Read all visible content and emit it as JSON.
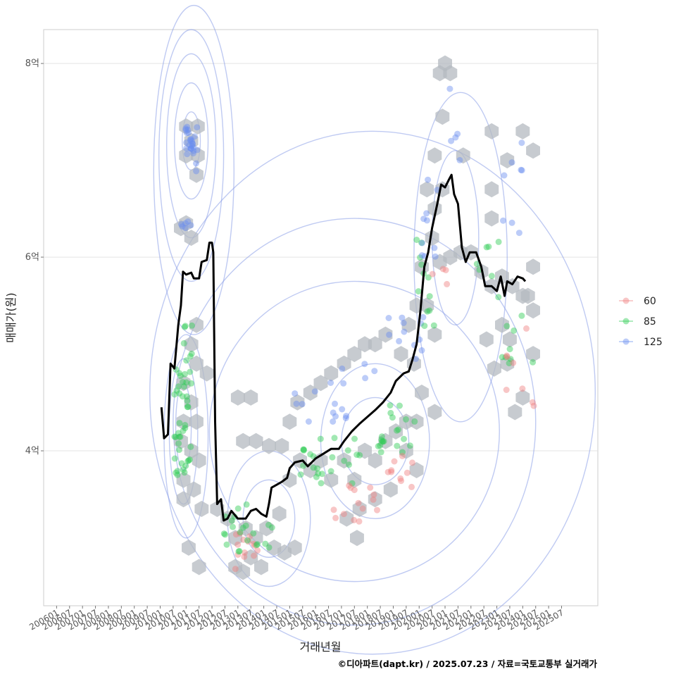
{
  "chart_data": {
    "type": "scatter",
    "title": "",
    "xlabel": "거래년월",
    "ylabel": "매매가(원)",
    "caption": "©디아파트(dapt.kr) / 2025.07.23 / 자료=국토교통부 실거래가",
    "x_ticks": [
      "200601",
      "200607",
      "200701",
      "200707",
      "200801",
      "200807",
      "200901",
      "200907",
      "201001",
      "201007",
      "201101",
      "201107",
      "201201",
      "201207",
      "201301",
      "201307",
      "201401",
      "201407",
      "201501",
      "201507",
      "201601",
      "201607",
      "201701",
      "201707",
      "201801",
      "201807",
      "201901",
      "201907",
      "202001",
      "202007",
      "202101",
      "202107",
      "202201",
      "202207",
      "202301",
      "202307",
      "202401",
      "202407",
      "202501",
      "202507"
    ],
    "y_ticks": [
      {
        "value": 4,
        "label": "4억"
      },
      {
        "value": 6,
        "label": "6억"
      },
      {
        "value": 8,
        "label": "8억"
      }
    ],
    "xlim": [
      2005.5,
      2026.9
    ],
    "ylim": [
      2.4,
      8.35
    ],
    "grid": "horizontal",
    "legend_position": "right",
    "legend": [
      {
        "name": "60",
        "color": "#f08080"
      },
      {
        "name": "85",
        "color": "#2ecc55"
      },
      {
        "name": "125",
        "color": "#6a8ff0"
      }
    ],
    "trend_line": {
      "color": "#000000",
      "points": [
        [
          2010.05,
          4.45
        ],
        [
          2010.15,
          4.13
        ],
        [
          2010.3,
          4.17
        ],
        [
          2010.4,
          4.9
        ],
        [
          2010.55,
          4.85
        ],
        [
          2010.7,
          5.3
        ],
        [
          2010.8,
          5.5
        ],
        [
          2010.88,
          5.85
        ],
        [
          2011.0,
          5.82
        ],
        [
          2011.2,
          5.84
        ],
        [
          2011.3,
          5.78
        ],
        [
          2011.5,
          5.78
        ],
        [
          2011.6,
          5.95
        ],
        [
          2011.8,
          5.97
        ],
        [
          2011.9,
          6.15
        ],
        [
          2012.0,
          6.15
        ],
        [
          2012.05,
          6.05
        ],
        [
          2012.12,
          4.3
        ],
        [
          2012.2,
          3.45
        ],
        [
          2012.35,
          3.5
        ],
        [
          2012.45,
          3.28
        ],
        [
          2012.6,
          3.3
        ],
        [
          2012.75,
          3.38
        ],
        [
          2013.0,
          3.3
        ],
        [
          2013.3,
          3.3
        ],
        [
          2013.5,
          3.38
        ],
        [
          2013.7,
          3.4
        ],
        [
          2013.9,
          3.35
        ],
        [
          2014.1,
          3.32
        ],
        [
          2014.2,
          3.45
        ],
        [
          2014.3,
          3.62
        ],
        [
          2014.5,
          3.65
        ],
        [
          2014.7,
          3.68
        ],
        [
          2014.9,
          3.72
        ],
        [
          2015.0,
          3.82
        ],
        [
          2015.2,
          3.88
        ],
        [
          2015.5,
          3.9
        ],
        [
          2015.7,
          3.84
        ],
        [
          2016.0,
          3.92
        ],
        [
          2016.3,
          3.97
        ],
        [
          2016.6,
          4.02
        ],
        [
          2016.9,
          4.02
        ],
        [
          2017.1,
          4.1
        ],
        [
          2017.4,
          4.2
        ],
        [
          2017.7,
          4.28
        ],
        [
          2018.0,
          4.35
        ],
        [
          2018.3,
          4.42
        ],
        [
          2018.6,
          4.5
        ],
        [
          2018.9,
          4.6
        ],
        [
          2019.1,
          4.72
        ],
        [
          2019.4,
          4.8
        ],
        [
          2019.6,
          4.82
        ],
        [
          2019.75,
          4.95
        ],
        [
          2019.9,
          5.1
        ],
        [
          2020.05,
          5.45
        ],
        [
          2020.2,
          5.9
        ],
        [
          2020.35,
          6.05
        ],
        [
          2020.5,
          6.3
        ],
        [
          2020.7,
          6.55
        ],
        [
          2020.85,
          6.75
        ],
        [
          2021.0,
          6.72
        ],
        [
          2021.15,
          6.8
        ],
        [
          2021.25,
          6.85
        ],
        [
          2021.35,
          6.65
        ],
        [
          2021.5,
          6.55
        ],
        [
          2021.65,
          6.1
        ],
        [
          2021.8,
          5.95
        ],
        [
          2021.95,
          6.05
        ],
        [
          2022.2,
          6.05
        ],
        [
          2022.4,
          5.9
        ],
        [
          2022.55,
          5.7
        ],
        [
          2022.8,
          5.7
        ],
        [
          2023.0,
          5.65
        ],
        [
          2023.15,
          5.8
        ],
        [
          2023.3,
          5.6
        ],
        [
          2023.4,
          5.75
        ],
        [
          2023.6,
          5.72
        ],
        [
          2023.8,
          5.8
        ],
        [
          2024.0,
          5.78
        ],
        [
          2024.1,
          5.75
        ]
      ]
    }
  }
}
